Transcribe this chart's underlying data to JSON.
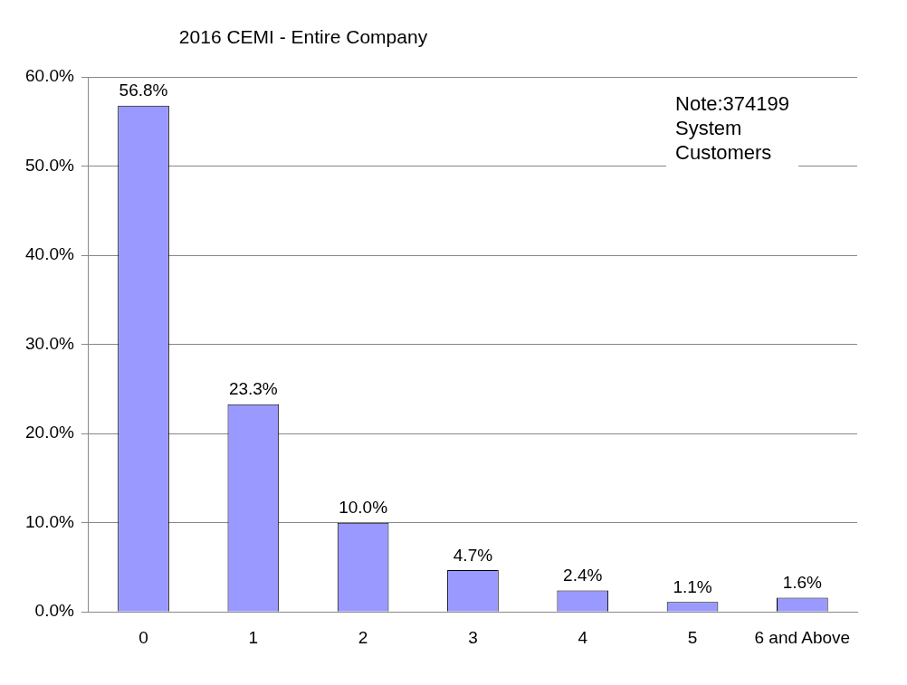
{
  "chart_data": {
    "type": "bar",
    "title": "2016 CEMI - Entire Company",
    "categories": [
      "0",
      "1",
      "2",
      "3",
      "4",
      "5",
      "6 and Above"
    ],
    "values": [
      56.8,
      23.3,
      10.0,
      4.7,
      2.4,
      1.1,
      1.6
    ],
    "value_labels": [
      "56.8%",
      "23.3%",
      "10.0%",
      "4.7%",
      "2.4%",
      "1.1%",
      "1.6%"
    ],
    "color": "#9999ff",
    "ylim": [
      0,
      60
    ],
    "yticks": [
      {
        "value": 0,
        "label": "0.0%"
      },
      {
        "value": 10,
        "label": "10.0%"
      },
      {
        "value": 20,
        "label": "20.0%"
      },
      {
        "value": 30,
        "label": "30.0%"
      },
      {
        "value": 40,
        "label": "40.0%"
      },
      {
        "value": 50,
        "label": "50.0%"
      },
      {
        "value": 60,
        "label": "60.0%"
      }
    ],
    "grid": "y",
    "legend": false,
    "annotations": [
      "Note:374199\nSystem\nCustomers"
    ]
  }
}
